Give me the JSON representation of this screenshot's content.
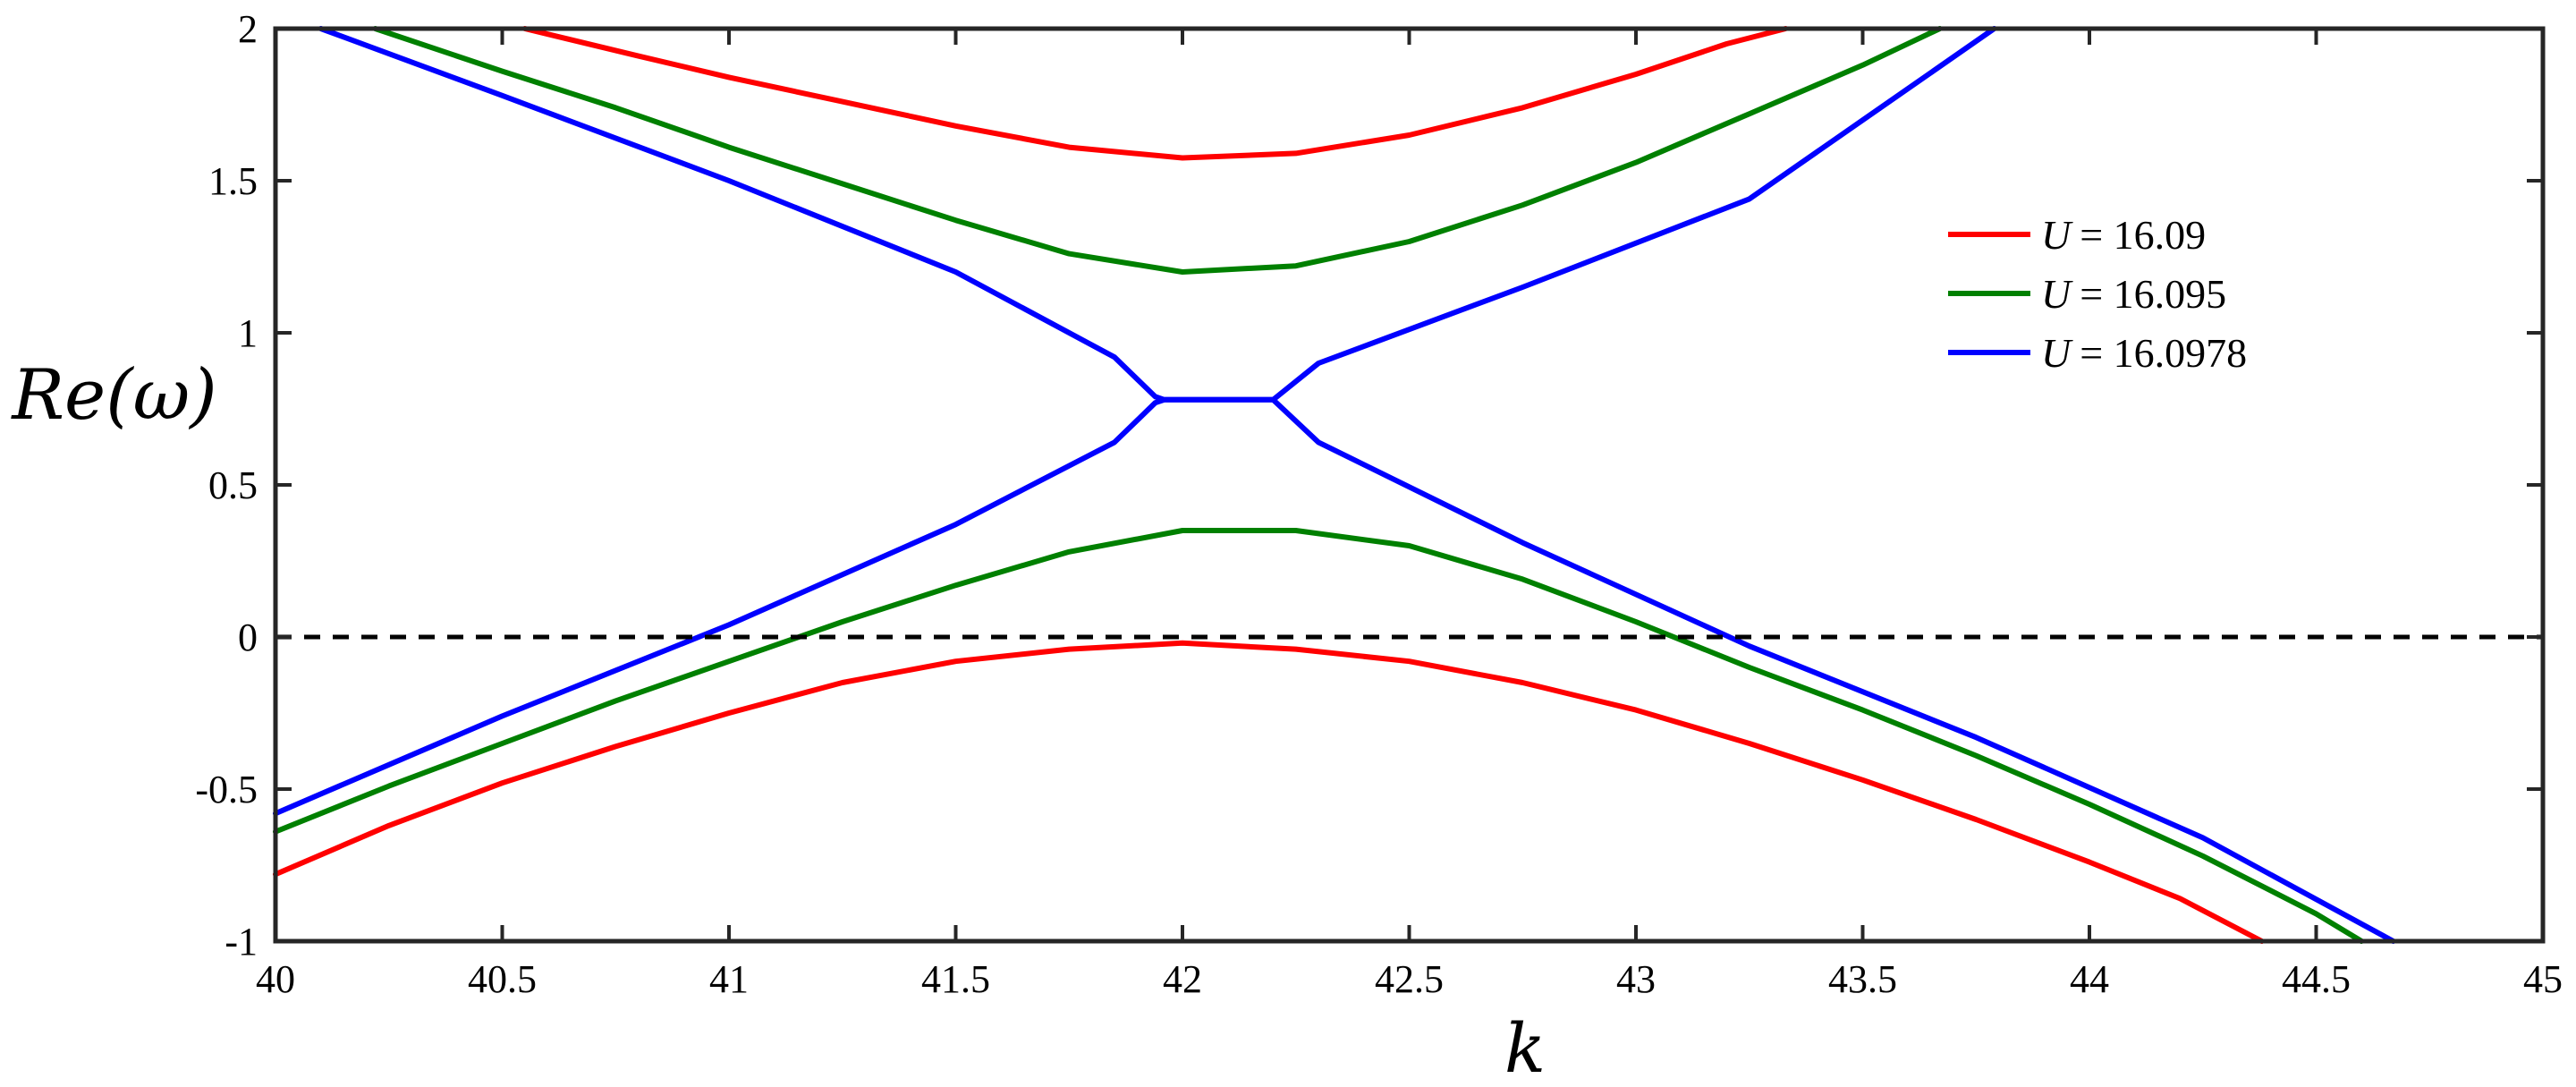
{
  "chart_data": {
    "type": "line",
    "title": "",
    "xlabel": "k",
    "ylabel": "Re(ω)",
    "xlim": [
      40,
      45
    ],
    "ylim": [
      -1,
      2
    ],
    "xticks": [
      40,
      40.5,
      41,
      41.5,
      42,
      42.5,
      43,
      43.5,
      44,
      44.5,
      45
    ],
    "xtick_labels": [
      "40",
      "40.5",
      "41",
      "41.5",
      "42",
      "42.5",
      "43",
      "43.5",
      "44",
      "44.5",
      "45"
    ],
    "yticks": [
      -1,
      -0.5,
      0,
      0.5,
      1,
      1.5,
      2
    ],
    "ytick_labels": [
      "-1",
      "-0.5",
      "0",
      "0.5",
      "1",
      "1.5",
      "2"
    ],
    "grid": false,
    "legend_position": "top-right",
    "reference_line": {
      "y": 0,
      "style": "dashed",
      "color": "#000000"
    },
    "series": [
      {
        "name": "U = 16.09",
        "legend_var": "U",
        "legend_value": "= 16.09",
        "color": "#ff0000",
        "branches": [
          {
            "x": [
              40.55,
              40.8,
              41.0,
              41.25,
              41.5,
              41.75,
              42.0,
              42.25,
              42.5,
              42.75,
              43.0,
              43.2,
              43.33
            ],
            "y": [
              2.0,
              1.91,
              1.84,
              1.76,
              1.68,
              1.61,
              1.575,
              1.59,
              1.65,
              1.74,
              1.85,
              1.95,
              2.0
            ]
          },
          {
            "x": [
              40.0,
              40.25,
              40.5,
              40.75,
              41.0,
              41.25,
              41.5,
              41.75,
              42.0,
              42.25,
              42.5,
              42.75,
              43.0,
              43.25,
              43.5,
              43.75,
              44.0,
              44.2,
              44.38
            ],
            "y": [
              -0.78,
              -0.62,
              -0.48,
              -0.36,
              -0.25,
              -0.15,
              -0.08,
              -0.04,
              -0.02,
              -0.04,
              -0.08,
              -0.15,
              -0.24,
              -0.35,
              -0.47,
              -0.6,
              -0.74,
              -0.86,
              -1.0
            ]
          }
        ]
      },
      {
        "name": "U = 16.095",
        "legend_var": "U",
        "legend_value": "= 16.095",
        "color": "#008000",
        "branches": [
          {
            "x": [
              40.22,
              40.5,
              40.75,
              41.0,
              41.25,
              41.5,
              41.75,
              42.0,
              42.25,
              42.5,
              42.75,
              43.0,
              43.25,
              43.5,
              43.67
            ],
            "y": [
              2.0,
              1.86,
              1.74,
              1.61,
              1.49,
              1.37,
              1.26,
              1.2,
              1.22,
              1.3,
              1.42,
              1.56,
              1.72,
              1.88,
              2.0
            ]
          },
          {
            "x": [
              40.0,
              40.25,
              40.5,
              40.75,
              41.0,
              41.25,
              41.5,
              41.75,
              42.0,
              42.25,
              42.5,
              42.75,
              43.0,
              43.25,
              43.5,
              43.75,
              44.0,
              44.25,
              44.5,
              44.6
            ],
            "y": [
              -0.64,
              -0.49,
              -0.35,
              -0.21,
              -0.08,
              0.05,
              0.17,
              0.28,
              0.35,
              0.35,
              0.3,
              0.19,
              0.05,
              -0.1,
              -0.24,
              -0.39,
              -0.55,
              -0.72,
              -0.91,
              -1.0
            ]
          }
        ]
      },
      {
        "name": "U = 16.0978",
        "legend_var": "U",
        "legend_value": "= 16.0978",
        "color": "#0000ff",
        "branches": [
          {
            "x": [
              40.1,
              40.5,
              41.0,
              41.5,
              41.85,
              41.94,
              41.96,
              42.18,
              42.2,
              42.3,
              42.75,
              43.25,
              43.79
            ],
            "y": [
              2.0,
              1.78,
              1.5,
              1.2,
              0.92,
              0.79,
              0.78,
              0.78,
              0.78,
              0.9,
              1.15,
              1.44,
              2.0
            ]
          },
          {
            "x": [
              40.0,
              40.5,
              41.0,
              41.5,
              41.85,
              41.94,
              41.96,
              42.18,
              42.2,
              42.3,
              42.75,
              43.25,
              43.75,
              44.25,
              44.67
            ],
            "y": [
              -0.58,
              -0.26,
              0.04,
              0.37,
              0.64,
              0.77,
              0.78,
              0.78,
              0.78,
              0.64,
              0.31,
              -0.03,
              -0.33,
              -0.66,
              -1.0
            ]
          }
        ]
      }
    ]
  }
}
